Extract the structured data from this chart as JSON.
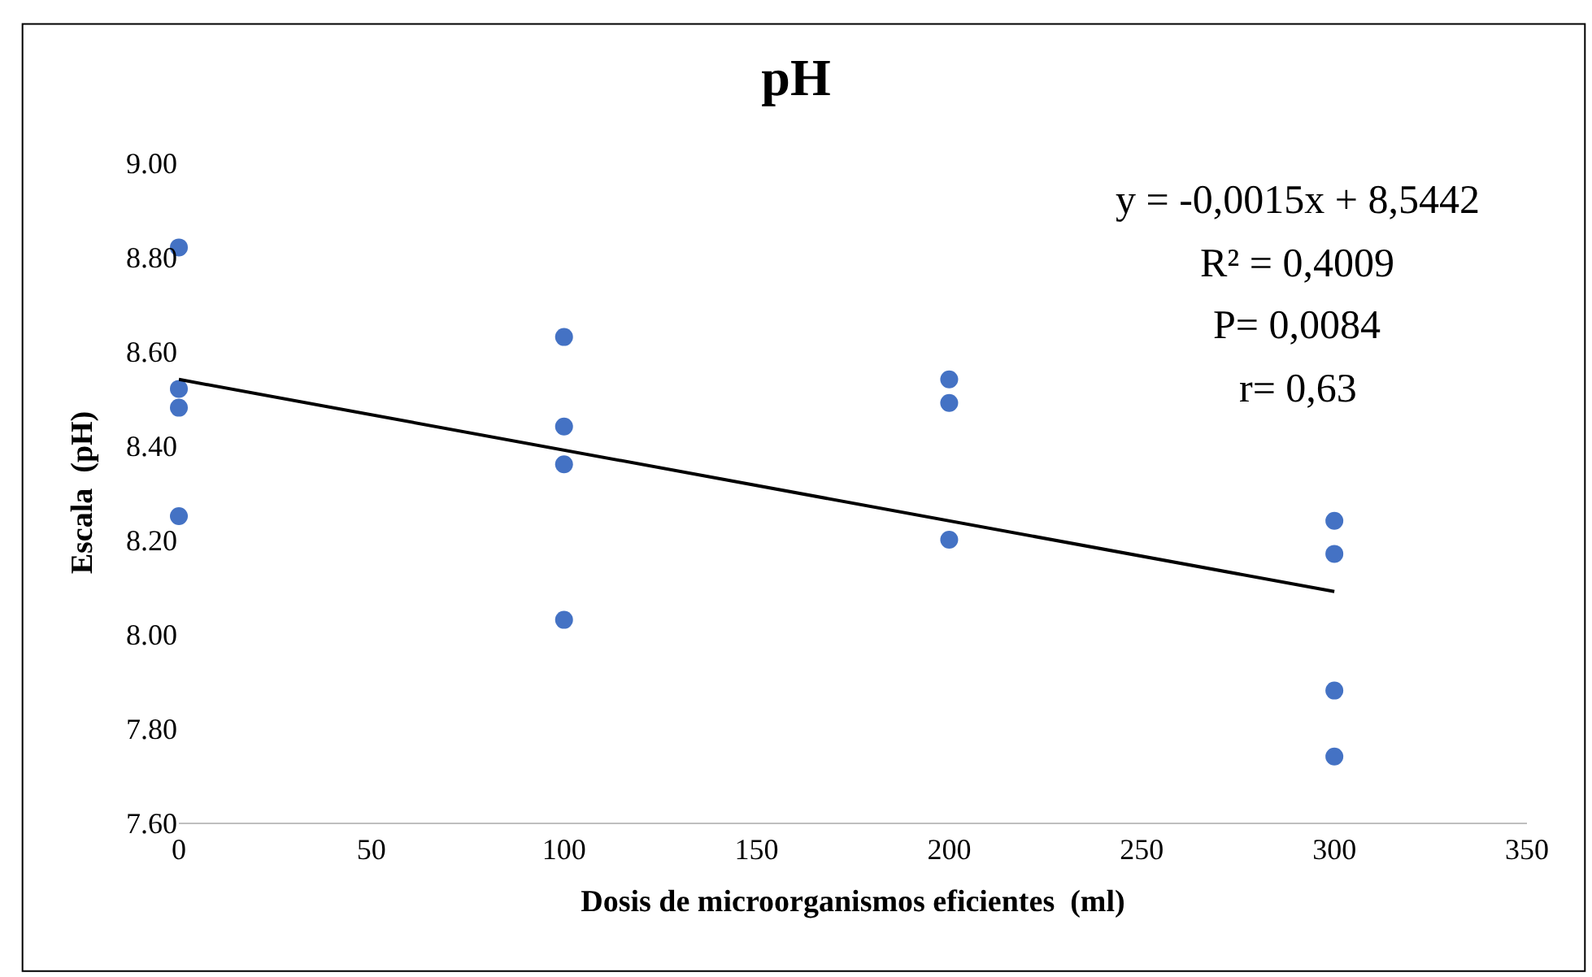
{
  "chart_data": {
    "type": "scatter",
    "title": "pH",
    "xlabel": "Dosis de microorganismos eficientes  (ml)",
    "ylabel": "Escala  (pH)",
    "annotations": [
      "y = -0,0015x + 8,5442",
      "R² = 0,4009",
      "P= 0,0084",
      "r= 0,63"
    ],
    "series": [
      {
        "color": "#4472c4",
        "x": [
          0,
          0,
          0,
          0,
          100,
          100,
          100,
          100,
          200,
          200,
          200,
          300,
          300,
          300,
          300
        ],
        "values": [
          8.82,
          8.52,
          8.48,
          8.25,
          8.63,
          8.44,
          8.36,
          8.03,
          8.54,
          8.49,
          8.2,
          8.24,
          8.17,
          7.88,
          7.74
        ]
      },
      {
        "type": "line",
        "marker": "none",
        "color": "#000000",
        "x": [
          0,
          300
        ],
        "values": [
          8.54,
          8.09
        ]
      }
    ],
    "marker": "circle",
    "xlim": [
      0,
      350
    ],
    "xticks": [
      0,
      50,
      100,
      150,
      200,
      250,
      300,
      350
    ],
    "ylim": [
      7.6,
      9.0
    ],
    "yticks": [
      {
        "value": 7.6,
        "label": "7.60"
      },
      {
        "value": 7.8,
        "label": "7.80"
      },
      {
        "value": 8.0,
        "label": "8.00"
      },
      {
        "value": 8.2,
        "label": "8.20"
      },
      {
        "value": 8.4,
        "label": "8.40"
      },
      {
        "value": 8.6,
        "label": "8.60"
      },
      {
        "value": 8.8,
        "label": "8.80"
      },
      {
        "value": 9.0,
        "label": "9.00"
      }
    ]
  }
}
